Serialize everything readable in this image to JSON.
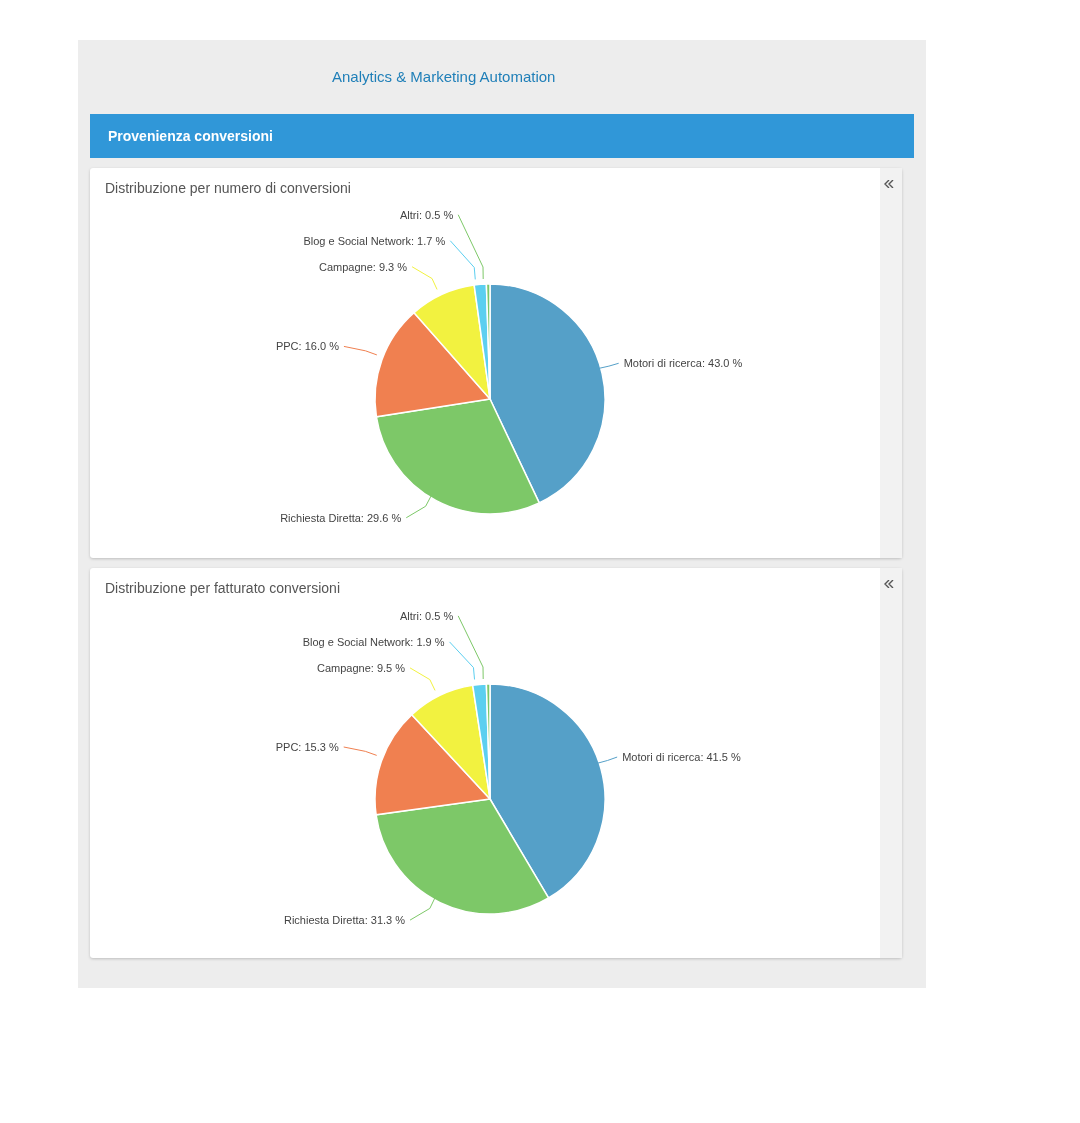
{
  "chart_data": [
    {
      "type": "pie",
      "title": "Distribuzione per numero di conversioni",
      "annotations": [
        "Analytics & Marketing Automation",
        "Provenienza conversioni"
      ],
      "categories": [
        "Motori di ricerca",
        "Richiesta Diretta",
        "PPC",
        "Campagne",
        "Blog e Social Network",
        "Altri"
      ],
      "values": [
        43.0,
        29.6,
        16.0,
        9.3,
        1.7,
        0.5
      ],
      "value_labels": [
        "43.0 %",
        "29.6 %",
        "16.0 %",
        "9.3 %",
        "1.7 %",
        "0.5 %"
      ],
      "colors": [
        "#55a0c8",
        "#7dc868",
        "#f08050",
        "#f2f240",
        "#5ccff0",
        "#7dc868"
      ],
      "legend": false
    },
    {
      "type": "pie",
      "title": "Distribuzione per fatturato conversioni",
      "categories": [
        "Motori di ricerca",
        "Richiesta Diretta",
        "PPC",
        "Campagne",
        "Blog e Social Network",
        "Altri"
      ],
      "values": [
        41.5,
        31.3,
        15.3,
        9.5,
        1.9,
        0.5
      ],
      "value_labels": [
        "41.5 %",
        "31.3 %",
        "15.3 %",
        "9.5 %",
        "1.9 %",
        "0.5 %"
      ],
      "colors": [
        "#55a0c8",
        "#7dc868",
        "#f08050",
        "#f2f240",
        "#5ccff0",
        "#7dc868"
      ],
      "legend": false
    }
  ]
}
